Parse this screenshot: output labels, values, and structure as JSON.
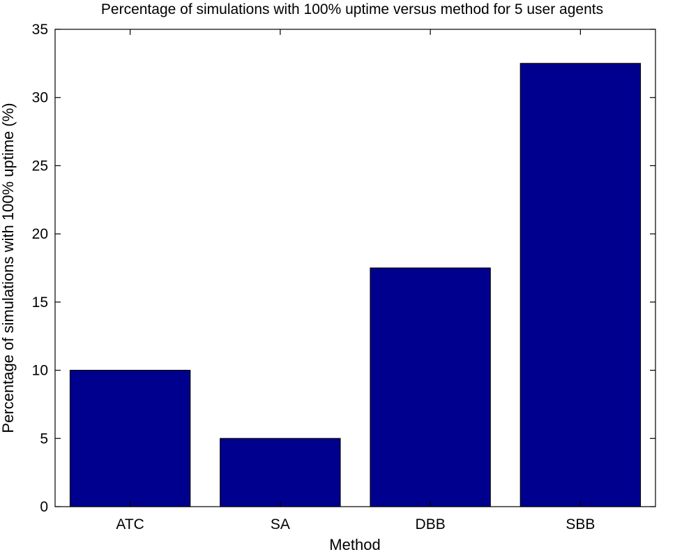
{
  "chart_data": {
    "type": "bar",
    "title": "Percentage of simulations with 100% uptime versus method for 5 user agents",
    "xlabel": "Method",
    "ylabel": "Percentage of simulations with 100% uptime (%)",
    "categories": [
      "ATC",
      "SA",
      "DBB",
      "SBB"
    ],
    "values": [
      10,
      5,
      17.5,
      32.5
    ],
    "ylim": [
      0,
      35
    ],
    "yticks": [
      0,
      5,
      10,
      15,
      20,
      25,
      30,
      35
    ],
    "grid": false,
    "legend": "none",
    "colors": {
      "bar": "#00008f",
      "edge": "#000000",
      "axis": "#000000"
    }
  }
}
